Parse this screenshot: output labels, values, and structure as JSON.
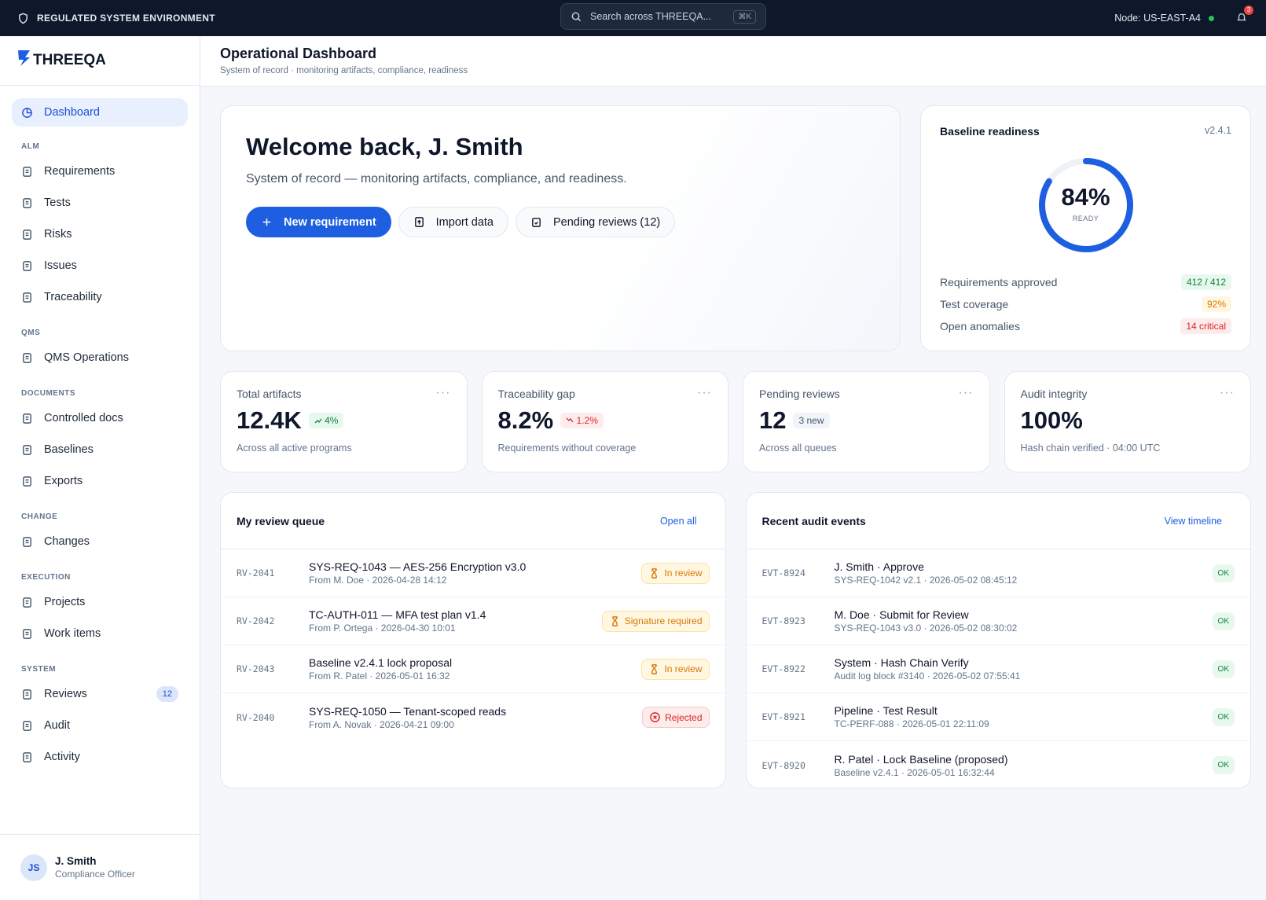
{
  "topbar": {
    "environment": "REGULATED SYSTEM ENVIRONMENT",
    "search_placeholder": "Search across THREEQA...",
    "search_shortcut": "⌘K",
    "node": "Node: US-EAST-A4",
    "notification_count": "3"
  },
  "sidebar": {
    "brand": "THREEQA",
    "primary": {
      "label": "Dashboard",
      "active": true
    },
    "sections": [
      {
        "heading": "ALM",
        "items": [
          {
            "label": "Requirements"
          },
          {
            "label": "Tests"
          },
          {
            "label": "Risks"
          },
          {
            "label": "Issues"
          },
          {
            "label": "Traceability"
          }
        ]
      },
      {
        "heading": "QMS",
        "items": [
          {
            "label": "QMS Operations"
          }
        ]
      },
      {
        "heading": "DOCUMENTS",
        "items": [
          {
            "label": "Controlled docs"
          },
          {
            "label": "Baselines"
          },
          {
            "label": "Exports"
          }
        ]
      },
      {
        "heading": "CHANGE",
        "items": [
          {
            "label": "Changes"
          }
        ]
      },
      {
        "heading": "EXECUTION",
        "items": [
          {
            "label": "Projects"
          },
          {
            "label": "Work items"
          }
        ]
      },
      {
        "heading": "SYSTEM",
        "items": [
          {
            "label": "Reviews",
            "badge": "12"
          },
          {
            "label": "Audit"
          },
          {
            "label": "Activity"
          }
        ]
      }
    ],
    "user": {
      "initials": "JS",
      "name": "J. Smith",
      "role": "Compliance Officer"
    }
  },
  "header": {
    "title": "Operational Dashboard",
    "subtitle": "System of record · monitoring artifacts, compliance, readiness"
  },
  "welcome": {
    "heading": "Welcome back, J. Smith",
    "text": "System of record — monitoring artifacts, compliance, and readiness.",
    "buttons": [
      {
        "label": "New requirement",
        "primary": true
      },
      {
        "label": "Import data",
        "primary": false
      },
      {
        "label": "Pending reviews (12)",
        "primary": false
      }
    ]
  },
  "readiness": {
    "title": "Baseline readiness",
    "version": "v2.4.1",
    "score": "84%",
    "caption": "READY",
    "rows": [
      {
        "label": "Requirements approved",
        "value": "412 / 412",
        "tone": "green"
      },
      {
        "label": "Test coverage",
        "value": "92%",
        "tone": "amber"
      },
      {
        "label": "Open anomalies",
        "value": "14 critical",
        "tone": "red"
      }
    ]
  },
  "kpis": [
    {
      "label": "Total artifacts",
      "value": "12.4K",
      "delta": "4%",
      "tone": "green",
      "note": "Across all active programs"
    },
    {
      "label": "Traceability gap",
      "value": "8.2%",
      "delta": "1.2%",
      "tone": "red",
      "note": "Requirements without coverage"
    },
    {
      "label": "Pending reviews",
      "value": "12",
      "delta": "3 new",
      "tone": "gray",
      "note": "Across all queues"
    },
    {
      "label": "Audit integrity",
      "value": "100%",
      "note": "Hash chain verified · 04:00 UTC"
    }
  ],
  "review_queue": {
    "title": "My review queue",
    "action": "Open all",
    "rows": [
      {
        "id": "RV-2041",
        "title": "SYS-REQ-1043 — AES-256 Encryption v3.0",
        "meta": "From M. Doe · 2026-04-28 14:12",
        "status": "In review",
        "tone": "amber"
      },
      {
        "id": "RV-2042",
        "title": "TC-AUTH-011 — MFA test plan v1.4",
        "meta": "From P. Ortega · 2026-04-30 10:01",
        "status": "Signature required",
        "tone": "amber"
      },
      {
        "id": "RV-2043",
        "title": "Baseline v2.4.1 lock proposal",
        "meta": "From R. Patel · 2026-05-01 16:32",
        "status": "In review",
        "tone": "amber"
      },
      {
        "id": "RV-2040",
        "title": "SYS-REQ-1050 — Tenant-scoped reads",
        "meta": "From A. Novak · 2026-04-21 09:00",
        "status": "Rejected",
        "tone": "red"
      }
    ]
  },
  "audit_events": {
    "title": "Recent audit events",
    "action": "View timeline",
    "rows": [
      {
        "id": "EVT-8924",
        "title": "J. Smith · Approve",
        "meta": "SYS-REQ-1042 v2.1 · 2026-05-02 08:45:12",
        "status": "OK",
        "tone": "green"
      },
      {
        "id": "EVT-8923",
        "title": "M. Doe · Submit for Review",
        "meta": "SYS-REQ-1043 v3.0 · 2026-05-02 08:30:02",
        "status": "OK",
        "tone": "green"
      },
      {
        "id": "EVT-8922",
        "title": "System · Hash Chain Verify",
        "meta": "Audit log block #3140 · 2026-05-02 07:55:41",
        "status": "OK",
        "tone": "green"
      },
      {
        "id": "EVT-8921",
        "title": "Pipeline · Test Result",
        "meta": "TC-PERF-088 · 2026-05-01 22:11:09",
        "status": "OK",
        "tone": "green"
      },
      {
        "id": "EVT-8920",
        "title": "R. Patel · Lock Baseline (proposed)",
        "meta": "Baseline v2.4.1 · 2026-05-01 16:32:44",
        "status": "OK",
        "tone": "green"
      }
    ]
  }
}
